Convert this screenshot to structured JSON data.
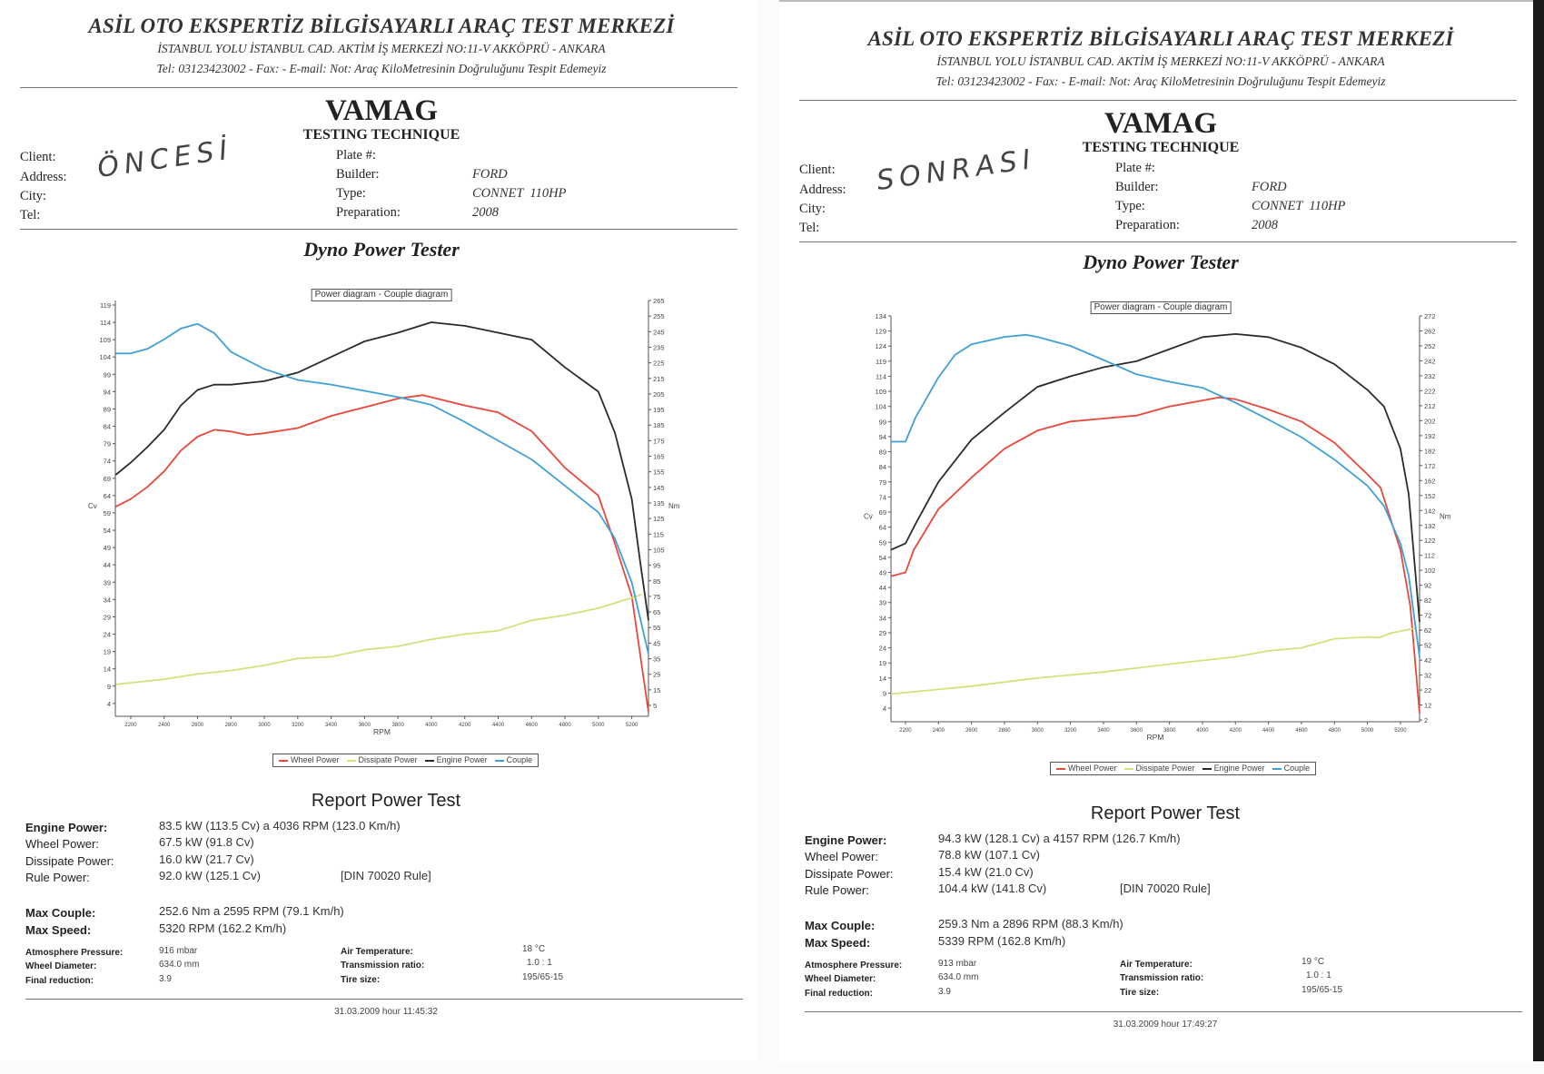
{
  "pages": [
    {
      "header": {
        "title": "ASİL OTO EKSPERTİZ BİLGİSAYARLI ARAÇ TEST MERKEZİ",
        "address": "İSTANBUL YOLU İSTANBUL CAD. AKTİM İŞ MERKEZİ NO:11-V AKKÖPRÜ - ANKARA",
        "contact": "Tel: 03123423002 - Fax:  - E-mail: Not: Araç KiloMetresinin Doğruluğunu Tespit Edemeyiz"
      },
      "brand": {
        "name": "VAMAG",
        "subtitle": "TESTING TECHNIQUE"
      },
      "client": {
        "client_label": "Client:",
        "address_label": "Address:",
        "city_label": "City:",
        "tel_label": "Tel:",
        "handwritten": "ÖNCESİ"
      },
      "vehicle": {
        "plate_label": "Plate #:",
        "builder_label": "Builder:",
        "builder": "FORD",
        "type_label": "Type:",
        "type": "CONNET  110HP",
        "preparation_label": "Preparation:",
        "preparation": "2008"
      },
      "section_title": "Dyno Power Tester",
      "report": {
        "title": "Report Power Test",
        "engine_power_label": "Engine Power:",
        "engine_power": "83.5 kW (113.5 Cv) a 4036 RPM (123.0 Km/h)",
        "wheel_power_label": "Wheel Power:",
        "wheel_power": "67.5 kW (91.8 Cv)",
        "dissipate_power_label": "Dissipate Power:",
        "dissipate_power": "16.0 kW (21.7 Cv)",
        "rule_power_label": "Rule Power:",
        "rule_power": "92.0 kW (125.1 Cv)",
        "rule_note": "[DIN 70020 Rule]",
        "max_couple_label": "Max Couple:",
        "max_couple": "252.6 Nm a 2595 RPM (79.1 Km/h)",
        "max_speed_label": "Max Speed:",
        "max_speed": "5320 RPM (162.2 Km/h)",
        "pressure_label": "Atmosphere Pressure:",
        "pressure": "916 mbar",
        "wheel_diameter_label": "Wheel Diameter:",
        "wheel_diameter": "634.0 mm",
        "final_reduction_label": "Final reduction:",
        "final_reduction": "3.9",
        "air_temp_label": "Air Temperature:",
        "air_temp": "18 °C",
        "transmission_label": "Transmission ratio:",
        "transmission": "1.0 : 1",
        "tire_label": "Tire size:",
        "tire": "195/65-15",
        "timestamp": "31.03.2009 hour 11:45:32"
      }
    },
    {
      "header": {
        "title": "ASİL OTO EKSPERTİZ BİLGİSAYARLI ARAÇ TEST MERKEZİ",
        "address": "İSTANBUL YOLU İSTANBUL CAD. AKTİM İŞ MERKEZİ NO:11-V AKKÖPRÜ - ANKARA",
        "contact": "Tel: 03123423002 - Fax:  - E-mail: Not: Araç KiloMetresinin Doğruluğunu Tespit Edemeyiz"
      },
      "brand": {
        "name": "VAMAG",
        "subtitle": "TESTING TECHNIQUE"
      },
      "client": {
        "client_label": "Client:",
        "address_label": "Address:",
        "city_label": "City:",
        "tel_label": "Tel:",
        "handwritten": "SONRASI"
      },
      "vehicle": {
        "plate_label": "Plate #:",
        "builder_label": "Builder:",
        "builder": "FORD",
        "type_label": "Type:",
        "type": "CONNET  110HP",
        "preparation_label": "Preparation:",
        "preparation": "2008"
      },
      "section_title": "Dyno Power Tester",
      "report": {
        "title": "Report Power Test",
        "engine_power_label": "Engine Power:",
        "engine_power": "94.3 kW (128.1 Cv) a 4157 RPM (126.7 Km/h)",
        "wheel_power_label": "Wheel Power:",
        "wheel_power": "78.8 kW (107.1 Cv)",
        "dissipate_power_label": "Dissipate Power:",
        "dissipate_power": "15.4 kW (21.0 Cv)",
        "rule_power_label": "Rule Power:",
        "rule_power": "104.4 kW (141.8 Cv)",
        "rule_note": "[DIN 70020 Rule]",
        "max_couple_label": "Max Couple:",
        "max_couple": "259.3 Nm a 2896 RPM (88.3 Km/h)",
        "max_speed_label": "Max Speed:",
        "max_speed": "5339 RPM (162.8 Km/h)",
        "pressure_label": "Atmosphere Pressure:",
        "pressure": "913 mbar",
        "wheel_diameter_label": "Wheel Diameter:",
        "wheel_diameter": "634.0 mm",
        "final_reduction_label": "Final reduction:",
        "final_reduction": "3.9",
        "air_temp_label": "Air Temperature:",
        "air_temp": "19 °C",
        "transmission_label": "Transmission ratio:",
        "transmission": "1.0 : 1",
        "tire_label": "Tire size:",
        "tire": "195/65-15",
        "timestamp": "31.03.2009 hour 17:49:27"
      }
    }
  ],
  "chart_data": [
    {
      "type": "line",
      "title": "Power diagram - Couple diagram",
      "xlabel": "RPM",
      "ylabel": "Cv",
      "ylabel_right": "Nm",
      "xlim": [
        2108,
        5300
      ],
      "ylim": [
        0.3,
        120.3
      ],
      "ylim_right": [
        -2,
        265
      ],
      "x_ticks": [
        2200,
        2400,
        2600,
        2800,
        3000,
        3200,
        3400,
        3600,
        3800,
        4000,
        4200,
        4400,
        4600,
        4800,
        5000,
        5200
      ],
      "y_ticks": [
        4,
        9,
        14,
        19,
        24,
        29,
        34,
        39,
        44,
        49,
        54,
        59,
        64,
        69,
        74,
        79,
        84,
        89,
        94,
        99,
        104,
        109,
        114,
        119
      ],
      "y_ticks_right": [
        5,
        15,
        25,
        35,
        45,
        55,
        65,
        75,
        85,
        95,
        105,
        115,
        125,
        135,
        145,
        155,
        165,
        175,
        185,
        195,
        205,
        215,
        225,
        235,
        245,
        255,
        265
      ],
      "grid": false,
      "legend_position": "bottom",
      "series": [
        {
          "name": "Wheel Power",
          "axis": "left",
          "color": "#e8473a",
          "x": [
            2110,
            2200,
            2300,
            2400,
            2500,
            2600,
            2700,
            2800,
            2900,
            3000,
            3200,
            3400,
            3600,
            3800,
            3950,
            4200,
            4400,
            4600,
            4800,
            5000,
            5100,
            5200,
            5300
          ],
          "y": [
            60.8,
            63,
            66.5,
            71,
            77,
            81,
            83,
            82.5,
            81.5,
            82,
            83.5,
            87,
            89.5,
            92,
            93,
            90,
            88,
            82.6,
            72,
            64,
            50,
            35,
            1.5
          ]
        },
        {
          "name": "Dissipate Power",
          "axis": "left",
          "color": "#d8e07a",
          "x": [
            2110,
            2400,
            2600,
            2800,
            3000,
            3200,
            3400,
            3600,
            3800,
            4000,
            4200,
            4400,
            4600,
            4800,
            5000,
            5200,
            5260
          ],
          "y": [
            9.5,
            11,
            12.5,
            13.5,
            15,
            17,
            17.5,
            19.5,
            20.5,
            22.5,
            24,
            25,
            28,
            29.5,
            31.5,
            34.5,
            35.5
          ]
        },
        {
          "name": "Engine Power",
          "axis": "left",
          "color": "#2b2b2b",
          "x": [
            2110,
            2200,
            2300,
            2400,
            2500,
            2600,
            2700,
            2800,
            3000,
            3200,
            3400,
            3600,
            3800,
            4000,
            4200,
            4400,
            4600,
            4800,
            5000,
            5100,
            5200,
            5250,
            5300
          ],
          "y": [
            70,
            73.5,
            78,
            83,
            90,
            94.5,
            96,
            96,
            97,
            99.5,
            104,
            108.5,
            111,
            114,
            113,
            111,
            109,
            101,
            94,
            82,
            63,
            45,
            28
          ]
        },
        {
          "name": "Couple",
          "axis": "right",
          "color": "#3fa0d8",
          "x": [
            2110,
            2200,
            2300,
            2400,
            2500,
            2600,
            2700,
            2800,
            3000,
            3200,
            3400,
            3600,
            3800,
            4000,
            4200,
            4400,
            4600,
            4800,
            5000,
            5100,
            5200,
            5300
          ],
          "y": [
            231,
            231,
            234,
            240,
            247,
            250,
            244,
            232,
            221,
            214,
            211,
            207,
            203,
            198,
            187,
            175,
            163,
            146,
            129,
            112,
            84,
            38
          ]
        }
      ]
    },
    {
      "type": "line",
      "title": "Power diagram - Couple diagram",
      "xlabel": "RPM",
      "ylabel": "Cv",
      "ylabel_right": "Nm",
      "xlim": [
        2112,
        5316
      ],
      "ylim": [
        -0.5,
        134
      ],
      "ylim_right": [
        0.8,
        272
      ],
      "x_ticks": [
        2200,
        2400,
        2600,
        2800,
        3000,
        3200,
        3400,
        3600,
        3800,
        4000,
        4200,
        4400,
        4600,
        4800,
        5000,
        5200
      ],
      "y_ticks": [
        4,
        9,
        14,
        19,
        24,
        29,
        34,
        39,
        44,
        49,
        54,
        59,
        64,
        69,
        74,
        79,
        84,
        89,
        94,
        99,
        104,
        109,
        114,
        119,
        124,
        129,
        134
      ],
      "y_ticks_right": [
        2,
        12,
        22,
        32,
        42,
        52,
        62,
        72,
        82,
        92,
        102,
        112,
        122,
        132,
        142,
        152,
        162,
        172,
        182,
        192,
        202,
        212,
        222,
        232,
        242,
        252,
        262,
        272
      ],
      "grid": false,
      "legend_position": "bottom",
      "series": [
        {
          "name": "Wheel Power",
          "axis": "left",
          "color": "#e8473a",
          "x": [
            2112,
            2200,
            2250,
            2400,
            2600,
            2800,
            3000,
            3200,
            3400,
            3600,
            3800,
            4000,
            4100,
            4200,
            4400,
            4600,
            4800,
            5000,
            5080,
            5200,
            5260,
            5316
          ],
          "y": [
            47.7,
            49,
            56.5,
            70,
            80.4,
            90,
            96,
            99,
            100,
            101,
            104,
            106,
            107,
            106.4,
            103,
            99,
            92,
            81.5,
            77,
            56.5,
            37.8,
            2.4
          ]
        },
        {
          "name": "Dissipate Power",
          "axis": "left",
          "color": "#d8e07a",
          "x": [
            2112,
            2600,
            3000,
            3400,
            3800,
            4200,
            4400,
            4600,
            4800,
            5000,
            5070,
            5150,
            5290
          ],
          "y": [
            8.7,
            11.3,
            14,
            16,
            18.6,
            21,
            23,
            24,
            27,
            27.6,
            27.4,
            29,
            30.5
          ]
        },
        {
          "name": "Engine Power",
          "axis": "left",
          "color": "#2b2b2b",
          "x": [
            2112,
            2200,
            2260,
            2400,
            2600,
            2800,
            3000,
            3200,
            3400,
            3600,
            3800,
            4000,
            4200,
            4400,
            4600,
            4800,
            5000,
            5100,
            5200,
            5250,
            5316
          ],
          "y": [
            56.5,
            58.6,
            65,
            79,
            93,
            102,
            110.5,
            114,
            117,
            119,
            123,
            127,
            128,
            127,
            123.5,
            118,
            109.5,
            104,
            90,
            75,
            32.6
          ]
        },
        {
          "name": "Couple",
          "axis": "right",
          "color": "#3fa0d8",
          "x": [
            2112,
            2200,
            2260,
            2400,
            2500,
            2600,
            2800,
            2930,
            3000,
            3200,
            3400,
            3600,
            3800,
            4000,
            4200,
            4400,
            4600,
            4800,
            5000,
            5100,
            5200,
            5250,
            5316
          ],
          "y": [
            188,
            188,
            204,
            231,
            246,
            253,
            258,
            259.4,
            258,
            252,
            242.6,
            233,
            228,
            224,
            214,
            202.7,
            191,
            176,
            158.5,
            145,
            120,
            98.6,
            44
          ]
        }
      ]
    }
  ]
}
